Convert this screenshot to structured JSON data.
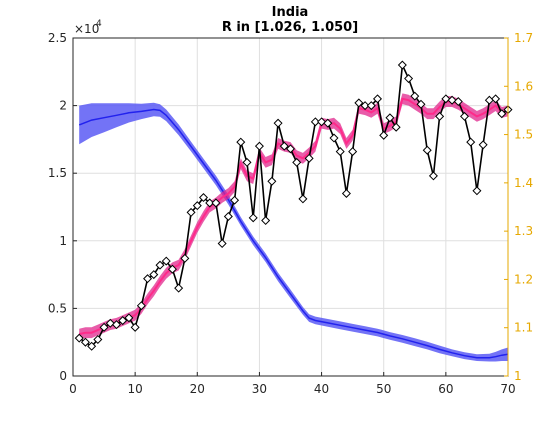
{
  "chart_data": {
    "type": "line",
    "title": "India",
    "subtitle": "R in [1.026, 1.050]",
    "x_ticks": [
      "0",
      "10",
      "20",
      "30",
      "40",
      "50",
      "60",
      "70"
    ],
    "y_left_ticks": [
      "0",
      "0.5",
      "1",
      "1.5",
      "2",
      "2.5"
    ],
    "y_left_exponent_base": "×10",
    "y_left_exponent": "4",
    "y_right_ticks": [
      "1",
      "1.1",
      "1.2",
      "1.3",
      "1.4",
      "1.5",
      "1.6",
      "1.7"
    ],
    "xlim": [
      0,
      70
    ],
    "ylim_left": [
      0,
      25000
    ],
    "ylim_right": [
      1.0,
      1.7
    ],
    "grid": true,
    "colors": {
      "observed": "#000000",
      "fit": "#ff2a8a",
      "fit_band": "#e0268c",
      "r": "#2222ee",
      "r_band": "#5a5af5",
      "right_axis": "#e6a800"
    },
    "series": [
      {
        "kind": "observed",
        "axis": "left",
        "marker": "diamond",
        "x": [
          1,
          2,
          3,
          4,
          5,
          6,
          7,
          8,
          9,
          10,
          11,
          12,
          13,
          14,
          15,
          16,
          17,
          18,
          19,
          20,
          21,
          22,
          23,
          24,
          25,
          26,
          27,
          28,
          29,
          30,
          31,
          32,
          33,
          34,
          35,
          36,
          37,
          38,
          39,
          40,
          41,
          42,
          43,
          44,
          45,
          46,
          47,
          48,
          49,
          50,
          51,
          52,
          53,
          54,
          55,
          56,
          57,
          58,
          59,
          60,
          61,
          62,
          63,
          64,
          65,
          66,
          67,
          68,
          69,
          70
        ],
        "values": [
          2800,
          2500,
          2200,
          2700,
          3600,
          3900,
          3800,
          4100,
          4300,
          3600,
          5200,
          7200,
          7500,
          8200,
          8500,
          7900,
          6500,
          8700,
          12100,
          12600,
          13200,
          12800,
          12800,
          9800,
          11800,
          13000,
          17300,
          15800,
          11700,
          17000,
          11500,
          14400,
          18700,
          17000,
          16800,
          15800,
          13100,
          16100,
          18800,
          18800,
          18700,
          17600,
          16600,
          13500,
          16600,
          20200,
          20000,
          20000,
          20500,
          17800,
          19100,
          18400,
          23000,
          22000,
          20700,
          20100,
          16700,
          14800,
          19200,
          20500,
          20400,
          20300,
          19200,
          17300,
          13700,
          17100,
          20400,
          20500,
          19400,
          19700
        ]
      },
      {
        "kind": "fit",
        "axis": "left",
        "x": [
          1,
          2,
          3,
          4,
          5,
          6,
          7,
          8,
          9,
          10,
          11,
          12,
          13,
          14,
          15,
          16,
          17,
          18,
          19,
          20,
          21,
          22,
          23,
          24,
          25,
          26,
          27,
          28,
          29,
          30,
          31,
          32,
          33,
          34,
          35,
          36,
          37,
          38,
          39,
          40,
          41,
          42,
          43,
          44,
          45,
          46,
          47,
          48,
          49,
          50,
          51,
          52,
          53,
          54,
          55,
          56,
          57,
          58,
          59,
          60,
          61,
          62,
          63,
          64,
          65,
          66,
          67,
          68,
          69,
          70
        ],
        "values": [
          3100,
          3200,
          3200,
          3400,
          3600,
          3800,
          3900,
          4100,
          4300,
          4500,
          5000,
          5700,
          6300,
          7000,
          7600,
          8000,
          8200,
          9000,
          10000,
          11000,
          11800,
          12500,
          12800,
          13200,
          13500,
          14000,
          15700,
          14800,
          14600,
          16500,
          15800,
          16000,
          17200,
          17000,
          16900,
          16300,
          16100,
          16500,
          17000,
          18700,
          18600,
          18700,
          18300,
          17200,
          17800,
          19800,
          19700,
          19500,
          19800,
          18300,
          18500,
          18800,
          20500,
          20400,
          20100,
          19800,
          19400,
          19400,
          19900,
          20300,
          20300,
          20100,
          19800,
          19500,
          19200,
          19400,
          19700,
          20000,
          19500,
          19600
        ],
        "band": 400
      },
      {
        "kind": "r",
        "axis": "right",
        "x": [
          1,
          3,
          5,
          7,
          9,
          11,
          13,
          14,
          15,
          17,
          19,
          21,
          23,
          25,
          27,
          29,
          31,
          33,
          35,
          37,
          38,
          39,
          41,
          43,
          45,
          47,
          49,
          51,
          53,
          55,
          57,
          59,
          61,
          63,
          65,
          67,
          68,
          69,
          70
        ],
        "values": [
          1.52,
          1.53,
          1.535,
          1.54,
          1.545,
          1.548,
          1.552,
          1.55,
          1.54,
          1.51,
          1.475,
          1.44,
          1.405,
          1.365,
          1.32,
          1.28,
          1.245,
          1.205,
          1.17,
          1.135,
          1.12,
          1.115,
          1.11,
          1.105,
          1.1,
          1.095,
          1.09,
          1.083,
          1.077,
          1.07,
          1.063,
          1.055,
          1.048,
          1.042,
          1.038,
          1.038,
          1.04,
          1.043,
          1.045
        ],
        "band": [
          0.04,
          0.035,
          0.03,
          0.025,
          0.02,
          0.016,
          0.014,
          0.013,
          0.012,
          0.011,
          0.01,
          0.01,
          0.01,
          0.01,
          0.009,
          0.009,
          0.009,
          0.009,
          0.009,
          0.008,
          0.008,
          0.008,
          0.008,
          0.008,
          0.008,
          0.008,
          0.008,
          0.008,
          0.008,
          0.008,
          0.008,
          0.008,
          0.007,
          0.007,
          0.007,
          0.008,
          0.01,
          0.012,
          0.014
        ]
      }
    ]
  }
}
